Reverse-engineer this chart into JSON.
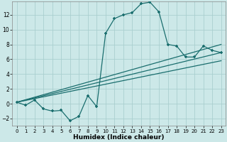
{
  "title": "",
  "xlabel": "Humidex (Indice chaleur)",
  "bg_color": "#cce8e8",
  "grid_color": "#aacfcf",
  "line_color": "#1a6e6e",
  "marker": "+",
  "markersize": 3.5,
  "markeredgewidth": 1.2,
  "linewidth": 0.9,
  "xlim": [
    -0.5,
    23.5
  ],
  "ylim": [
    -3.0,
    13.8
  ],
  "xticks": [
    0,
    1,
    2,
    3,
    4,
    5,
    6,
    7,
    8,
    9,
    10,
    11,
    12,
    13,
    14,
    15,
    16,
    17,
    18,
    19,
    20,
    21,
    22,
    23
  ],
  "yticks": [
    -2,
    0,
    2,
    4,
    6,
    8,
    10,
    12
  ],
  "curve1_x": [
    0,
    1,
    2,
    3,
    4,
    5,
    6,
    7,
    8,
    9,
    10,
    11,
    12,
    13,
    14,
    15,
    16,
    17,
    18,
    19,
    20,
    21,
    22,
    23
  ],
  "curve1_y": [
    0.2,
    -0.2,
    0.5,
    -0.7,
    -1.0,
    -0.9,
    -2.3,
    -1.7,
    1.1,
    -0.4,
    9.5,
    11.5,
    12.0,
    12.3,
    13.5,
    13.7,
    12.4,
    8.0,
    7.8,
    6.3,
    6.3,
    7.8,
    7.2,
    6.9
  ],
  "line2_x": [
    0,
    23
  ],
  "line2_y": [
    0.2,
    8.0
  ],
  "line3_x": [
    0,
    23
  ],
  "line3_y": [
    0.2,
    6.9
  ],
  "line4_x": [
    0,
    23
  ],
  "line4_y": [
    0.2,
    5.8
  ],
  "xlabel_fontsize": 6.5,
  "xlabel_fontweight": "bold",
  "tick_fontsize_x": 5.0,
  "tick_fontsize_y": 5.5
}
